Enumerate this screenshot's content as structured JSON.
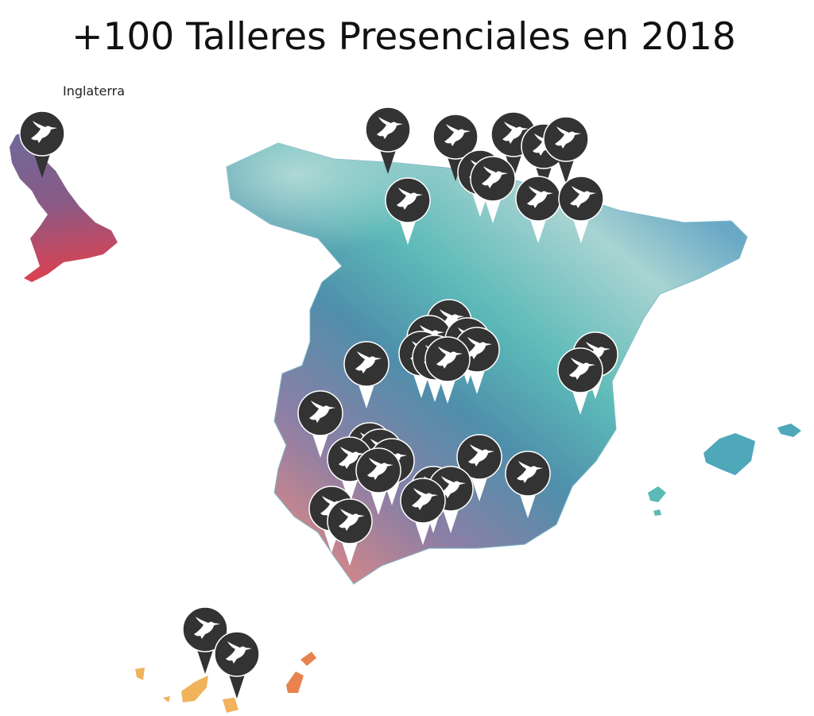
{
  "title": "+100 Talleres Presenciales en 2018",
  "labels": {
    "england": "Inglaterra"
  }
}
